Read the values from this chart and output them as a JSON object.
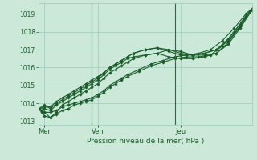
{
  "background_color": "#cce8d8",
  "grid_color": "#99ccb8",
  "line_color": "#1a5c2a",
  "marker_color": "#1a5c2a",
  "ylim": [
    1012.8,
    1019.6
  ],
  "yticks": [
    1013,
    1014,
    1015,
    1016,
    1017,
    1018,
    1019
  ],
  "xlabel": "Pression niveau de la mer( hPa )",
  "xlabel_color": "#1a5c2a",
  "tick_color": "#1a5c2a",
  "vline_color": "#336644",
  "vlines_x": [
    18,
    46
  ],
  "xlim": [
    0,
    72
  ],
  "xtick_positions": [
    2,
    20,
    48
  ],
  "xtick_labels": [
    "Mer",
    "Ven",
    "Jeu"
  ],
  "series": [
    {
      "x": [
        0,
        1,
        2,
        4,
        6,
        8,
        10,
        12,
        14,
        16,
        18,
        20,
        22,
        24,
        26,
        28,
        30,
        34,
        38,
        42,
        46,
        50,
        54,
        58,
        62,
        66,
        70,
        72
      ],
      "y": [
        1013.7,
        1013.6,
        1013.5,
        1013.5,
        1013.6,
        1013.8,
        1013.9,
        1014.0,
        1014.1,
        1014.2,
        1014.3,
        1014.5,
        1014.7,
        1015.0,
        1015.2,
        1015.4,
        1015.6,
        1015.9,
        1016.2,
        1016.4,
        1016.6,
        1016.7,
        1016.8,
        1017.0,
        1017.5,
        1018.2,
        1019.0,
        1019.3
      ]
    },
    {
      "x": [
        0,
        1,
        2,
        4,
        6,
        8,
        10,
        12,
        14,
        16,
        18,
        20,
        22,
        24,
        26,
        28,
        30,
        34,
        38,
        42,
        46,
        50,
        54,
        58,
        62,
        66,
        70,
        72
      ],
      "y": [
        1013.7,
        1013.5,
        1013.3,
        1013.2,
        1013.4,
        1013.6,
        1013.7,
        1013.9,
        1014.0,
        1014.1,
        1014.2,
        1014.4,
        1014.6,
        1014.9,
        1015.1,
        1015.3,
        1015.5,
        1015.8,
        1016.1,
        1016.3,
        1016.5,
        1016.6,
        1016.6,
        1016.7,
        1017.2,
        1018.0,
        1018.9,
        1019.2
      ]
    },
    {
      "x": [
        0,
        2,
        4,
        6,
        8,
        10,
        12,
        14,
        16,
        18,
        20,
        22,
        24,
        26,
        28,
        30,
        32,
        36,
        40,
        44,
        48,
        52,
        56,
        60,
        64,
        68,
        72
      ],
      "y": [
        1013.7,
        1013.5,
        1013.2,
        1013.5,
        1013.9,
        1014.1,
        1014.3,
        1014.5,
        1014.7,
        1014.9,
        1015.1,
        1015.4,
        1015.7,
        1015.9,
        1016.1,
        1016.3,
        1016.5,
        1016.7,
        1016.8,
        1017.0,
        1016.9,
        1016.7,
        1016.7,
        1016.8,
        1017.3,
        1018.2,
        1019.2
      ]
    },
    {
      "x": [
        0,
        2,
        4,
        6,
        8,
        10,
        12,
        14,
        16,
        18,
        20,
        22,
        24,
        26,
        28,
        30,
        32,
        36,
        40,
        44,
        48,
        52,
        56,
        60,
        64,
        68,
        72
      ],
      "y": [
        1013.7,
        1013.9,
        1013.7,
        1014.0,
        1014.2,
        1014.4,
        1014.6,
        1014.8,
        1015.0,
        1015.2,
        1015.4,
        1015.7,
        1016.0,
        1016.2,
        1016.4,
        1016.6,
        1016.8,
        1017.0,
        1017.1,
        1017.0,
        1016.8,
        1016.7,
        1016.8,
        1017.0,
        1017.5,
        1018.3,
        1019.3
      ]
    },
    {
      "x": [
        0,
        2,
        4,
        6,
        8,
        10,
        12,
        14,
        16,
        18,
        20,
        22,
        24,
        26,
        28,
        30,
        32,
        36,
        40,
        44,
        48,
        52,
        56,
        60,
        64,
        68,
        72
      ],
      "y": [
        1013.7,
        1013.8,
        1013.8,
        1014.1,
        1014.3,
        1014.5,
        1014.7,
        1014.9,
        1015.1,
        1015.3,
        1015.5,
        1015.7,
        1016.0,
        1016.2,
        1016.4,
        1016.6,
        1016.8,
        1017.0,
        1017.1,
        1016.9,
        1016.7,
        1016.7,
        1016.8,
        1017.0,
        1017.6,
        1018.4,
        1019.3
      ]
    },
    {
      "x": [
        0,
        2,
        4,
        6,
        8,
        10,
        12,
        14,
        16,
        18,
        20,
        22,
        24,
        26,
        28,
        30,
        32,
        36,
        40,
        44,
        48,
        52,
        56,
        60,
        64,
        68,
        72
      ],
      "y": [
        1013.7,
        1013.7,
        1013.6,
        1013.9,
        1014.1,
        1014.3,
        1014.5,
        1014.7,
        1014.9,
        1015.1,
        1015.3,
        1015.6,
        1015.9,
        1016.1,
        1016.3,
        1016.5,
        1016.6,
        1016.7,
        1016.8,
        1016.6,
        1016.5,
        1016.5,
        1016.6,
        1016.8,
        1017.4,
        1018.3,
        1019.3
      ]
    }
  ]
}
